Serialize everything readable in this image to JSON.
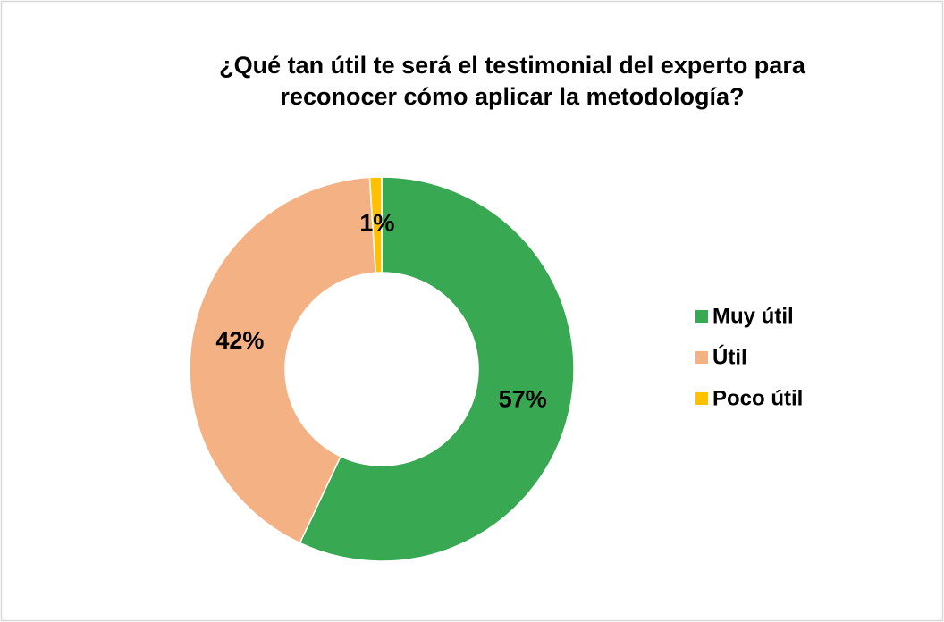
{
  "chart_data": {
    "type": "donut",
    "title": [
      "¿Qué tan útil te será el testimonial del experto para",
      "reconocer cómo aplicar la metodología?"
    ],
    "categories": [
      "Muy útil",
      "Útil",
      "Poco útil"
    ],
    "values": [
      57,
      42,
      1
    ],
    "value_labels": [
      "57%",
      "42%",
      "1%"
    ],
    "colors": [
      "#38a853",
      "#f4b183",
      "#ffc000"
    ],
    "legend": "right"
  }
}
